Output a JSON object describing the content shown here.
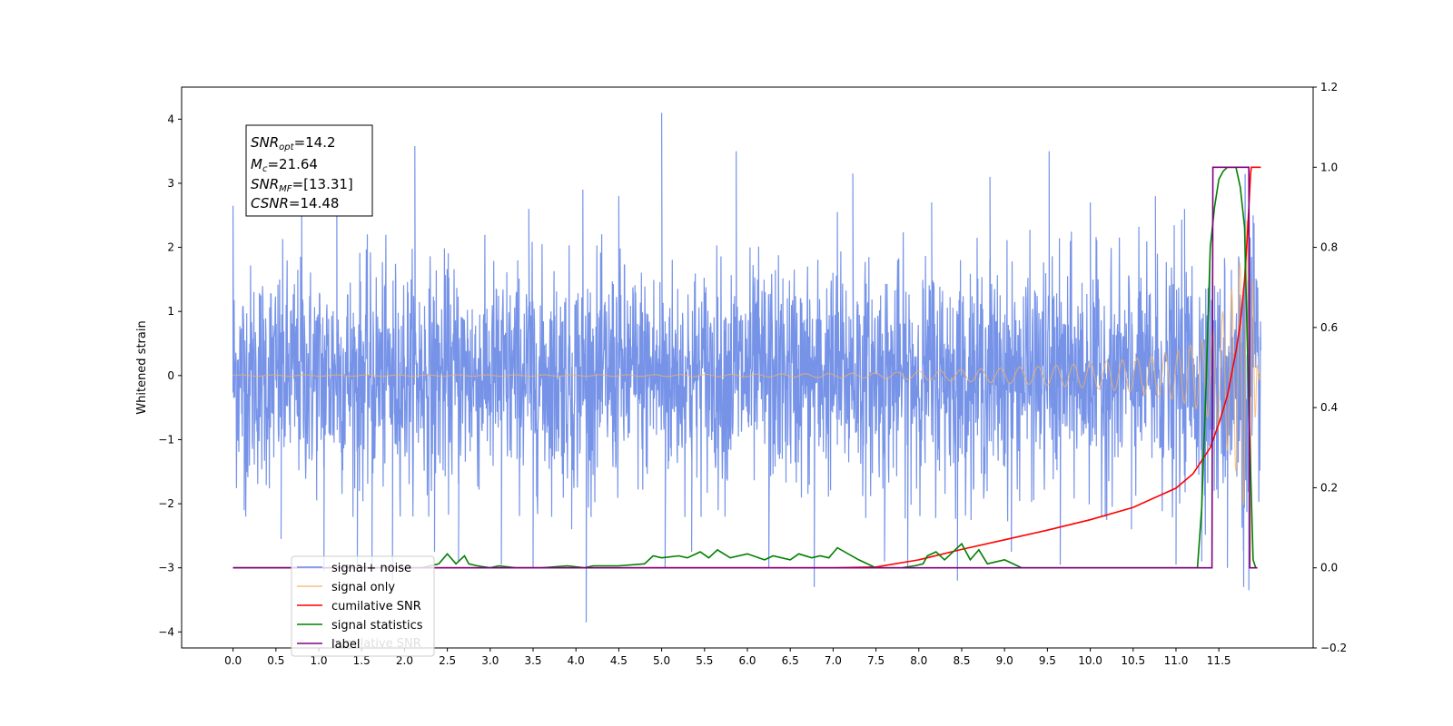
{
  "chart_data": {
    "type": "line",
    "ylabel": "Whitened strain",
    "xlabel": "",
    "xlim": [
      -0.6,
      12.6
    ],
    "ylim": [
      -4.25,
      4.5
    ],
    "y2lim": [
      -0.2,
      1.2
    ],
    "xticks": [
      0.0,
      0.5,
      1.0,
      1.5,
      2.0,
      2.5,
      3.0,
      3.5,
      4.0,
      4.5,
      5.0,
      5.5,
      6.0,
      6.5,
      7.0,
      7.5,
      8.0,
      8.5,
      9.0,
      9.5,
      10.0,
      10.5,
      11.0,
      11.5
    ],
    "xtick_labels": [
      "0.0",
      "0.5",
      "1.0",
      "1.5",
      "2.0",
      "2.5",
      "3.0",
      "3.5",
      "4.0",
      "4.5",
      "5.0",
      "5.5",
      "6.0",
      "6.5",
      "7.0",
      "7.5",
      "8.0",
      "8.5",
      "9.0",
      "9.5",
      "10.0",
      "10.5",
      "11.0",
      "11.5"
    ],
    "yticks": [
      -4,
      -3,
      -2,
      -1,
      0,
      1,
      2,
      3,
      4
    ],
    "ytick_labels": [
      "−4",
      "−3",
      "−2",
      "−1",
      "0",
      "1",
      "2",
      "3",
      "4"
    ],
    "y2ticks": [
      -0.2,
      0.0,
      0.2,
      0.4,
      0.6,
      0.8,
      1.0,
      1.2
    ],
    "y2tick_labels": [
      "−0.2",
      "0.0",
      "0.2",
      "0.4",
      "0.6",
      "0.8",
      "1.0",
      "1.2"
    ],
    "grid": false,
    "legend": "lower-left",
    "annotation": {
      "lines": [
        {
          "main": "SNR",
          "sub": "opt",
          "rest": "=14.2"
        },
        {
          "main": "M",
          "sub": "c",
          "rest": "=21.64"
        },
        {
          "main": "SNR",
          "sub": "MF",
          "rest": "=[13.31]"
        },
        {
          "main": "CSNR",
          "sub": "",
          "rest": "=14.48"
        }
      ]
    },
    "series": [
      {
        "name": "signal+ noise",
        "color": "#6a8ae6",
        "axis": "left",
        "style": "noise",
        "x_range": [
          0.0,
          11.99
        ],
        "sigma": 1.0,
        "spikes": [
          {
            "x": 0.0,
            "y": 2.65
          },
          {
            "x": 0.13,
            "y": -2.1
          },
          {
            "x": 0.56,
            "y": -2.55
          },
          {
            "x": 0.8,
            "y": 2.5
          },
          {
            "x": 1.06,
            "y": -3.05
          },
          {
            "x": 1.21,
            "y": 2.6
          },
          {
            "x": 1.45,
            "y": -2.95
          },
          {
            "x": 1.62,
            "y": -3.05
          },
          {
            "x": 1.86,
            "y": -3.2
          },
          {
            "x": 2.12,
            "y": 3.58
          },
          {
            "x": 2.35,
            "y": -2.75
          },
          {
            "x": 2.63,
            "y": -2.9
          },
          {
            "x": 3.13,
            "y": -2.95
          },
          {
            "x": 3.45,
            "y": 2.6
          },
          {
            "x": 3.5,
            "y": -3.0
          },
          {
            "x": 3.95,
            "y": -2.4
          },
          {
            "x": 4.08,
            "y": 2.9
          },
          {
            "x": 4.12,
            "y": -3.85
          },
          {
            "x": 4.5,
            "y": 2.8
          },
          {
            "x": 5.0,
            "y": 4.1
          },
          {
            "x": 5.04,
            "y": -3.0
          },
          {
            "x": 5.35,
            "y": -2.75
          },
          {
            "x": 5.87,
            "y": 3.5
          },
          {
            "x": 6.25,
            "y": -3.0
          },
          {
            "x": 6.78,
            "y": -3.3
          },
          {
            "x": 7.05,
            "y": 2.55
          },
          {
            "x": 7.23,
            "y": 3.15
          },
          {
            "x": 7.6,
            "y": -2.9
          },
          {
            "x": 7.87,
            "y": -3.0
          },
          {
            "x": 8.15,
            "y": 2.7
          },
          {
            "x": 8.45,
            "y": -3.2
          },
          {
            "x": 8.83,
            "y": 3.1
          },
          {
            "x": 9.08,
            "y": -2.75
          },
          {
            "x": 9.52,
            "y": 3.5
          },
          {
            "x": 9.65,
            "y": -2.95
          },
          {
            "x": 10.0,
            "y": 2.7
          },
          {
            "x": 10.48,
            "y": -2.4
          },
          {
            "x": 10.76,
            "y": 2.8
          },
          {
            "x": 11.0,
            "y": -2.95
          },
          {
            "x": 11.1,
            "y": 2.6
          },
          {
            "x": 11.3,
            "y": -2.9
          },
          {
            "x": 11.6,
            "y": -3.0
          },
          {
            "x": 11.79,
            "y": -3.3
          },
          {
            "x": 11.85,
            "y": -3.35
          },
          {
            "x": 11.9,
            "y": 2.5
          }
        ]
      },
      {
        "name": "signal only",
        "color": "#f5b264",
        "axis": "left",
        "style": "chirp",
        "x_range": [
          0.0,
          11.99
        ],
        "envelope": [
          [
            0.0,
            0.01
          ],
          [
            4.0,
            0.01
          ],
          [
            6.0,
            0.02
          ],
          [
            7.5,
            0.04
          ],
          [
            8.0,
            0.07
          ],
          [
            8.5,
            0.09
          ],
          [
            9.0,
            0.12
          ],
          [
            9.5,
            0.15
          ],
          [
            10.0,
            0.2
          ],
          [
            10.5,
            0.26
          ],
          [
            11.0,
            0.38
          ],
          [
            11.3,
            0.55
          ],
          [
            11.5,
            0.85
          ],
          [
            11.7,
            1.5
          ],
          [
            11.8,
            2.1
          ],
          [
            11.85,
            2.7
          ],
          [
            11.87,
            3.1
          ],
          [
            11.9,
            1.2
          ],
          [
            11.95,
            0.15
          ],
          [
            11.99,
            0.01
          ]
        ]
      },
      {
        "name": "cumilative SNR",
        "color": "#ff0000",
        "axis": "right",
        "x": [
          0.0,
          6.0,
          7.0,
          7.5,
          8.0,
          8.5,
          9.0,
          9.5,
          10.0,
          10.5,
          11.0,
          11.2,
          11.4,
          11.5,
          11.6,
          11.7,
          11.75,
          11.8,
          11.83,
          11.85,
          11.86,
          11.87,
          11.88,
          11.9,
          11.95,
          11.99
        ],
        "y": [
          0.0,
          0.0,
          0.0,
          0.002,
          0.02,
          0.046,
          0.07,
          0.094,
          0.12,
          0.151,
          0.199,
          0.235,
          0.3,
          0.36,
          0.43,
          0.54,
          0.61,
          0.72,
          0.82,
          0.9,
          0.94,
          0.985,
          1.0,
          1.0,
          1.0,
          1.0
        ]
      },
      {
        "name": "signal statistics",
        "color": "#008000",
        "axis": "right",
        "x": [
          0.0,
          0.8,
          1.3,
          1.8,
          2.2,
          2.4,
          2.5,
          2.6,
          2.7,
          2.75,
          2.85,
          3.0,
          3.1,
          3.3,
          3.6,
          3.9,
          4.1,
          4.2,
          4.5,
          4.8,
          4.9,
          5.0,
          5.2,
          5.3,
          5.45,
          5.55,
          5.65,
          5.8,
          6.0,
          6.2,
          6.3,
          6.5,
          6.6,
          6.75,
          6.85,
          6.95,
          7.05,
          7.3,
          7.5,
          7.8,
          7.95,
          8.05,
          8.1,
          8.2,
          8.3,
          8.4,
          8.5,
          8.6,
          8.7,
          8.8,
          9.0,
          9.2,
          9.5,
          9.8,
          10.0,
          10.3,
          10.6,
          10.9,
          11.1,
          11.2,
          11.25,
          11.3,
          11.35,
          11.4,
          11.45,
          11.5,
          11.55,
          11.6,
          11.7,
          11.75,
          11.8,
          11.85,
          11.9,
          11.93
        ],
        "y": [
          0.0,
          0.0,
          0.0,
          0.0,
          0.0,
          0.01,
          0.035,
          0.01,
          0.03,
          0.01,
          0.005,
          0.0,
          0.005,
          0.0,
          0.0,
          0.005,
          0.0,
          0.005,
          0.005,
          0.01,
          0.03,
          0.025,
          0.03,
          0.025,
          0.04,
          0.025,
          0.045,
          0.025,
          0.035,
          0.02,
          0.03,
          0.02,
          0.035,
          0.025,
          0.03,
          0.025,
          0.05,
          0.02,
          0.0,
          0.0,
          0.005,
          0.01,
          0.03,
          0.04,
          0.02,
          0.04,
          0.06,
          0.02,
          0.045,
          0.01,
          0.02,
          0.0,
          0.0,
          0.0,
          0.0,
          0.0,
          0.0,
          0.0,
          0.0,
          0.0,
          0.0,
          0.15,
          0.45,
          0.8,
          0.9,
          0.97,
          0.99,
          1.0,
          1.0,
          0.95,
          0.85,
          0.4,
          0.02,
          0.0
        ]
      },
      {
        "name": "label",
        "color": "#800080",
        "axis": "right",
        "x": [
          0.0,
          11.42,
          11.43,
          11.85,
          11.86,
          11.95
        ],
        "y": [
          0.0,
          0.0,
          1.0,
          1.0,
          0.0,
          0.0
        ]
      }
    ],
    "legend_ghost_text": "cumilative SNR"
  }
}
